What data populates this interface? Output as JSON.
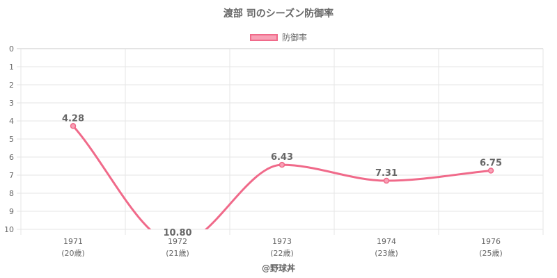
{
  "chart_data": {
    "type": "line",
    "title": "渡部 司のシーズン防御率",
    "legend_position": "top-center",
    "grid": true,
    "y_reversed": true,
    "ylim": [
      0,
      10
    ],
    "yticks": [
      "0",
      "1",
      "2",
      "3",
      "4",
      "5",
      "6",
      "7",
      "8",
      "9",
      "10"
    ],
    "categories": [
      {
        "year": "1971",
        "age": "(20歳)"
      },
      {
        "year": "1972",
        "age": "(21歳)"
      },
      {
        "year": "1973",
        "age": "(22歳)"
      },
      {
        "year": "1974",
        "age": "(23歳)"
      },
      {
        "year": "1976",
        "age": "(25歳)"
      }
    ],
    "series": [
      {
        "name": "防御率",
        "color": "#f06a8a",
        "fill": "#f8a1b6",
        "values": [
          4.28,
          10.8,
          6.43,
          7.31,
          6.75
        ],
        "labels": [
          "4.28",
          "10.80",
          "6.43",
          "7.31",
          "6.75"
        ]
      }
    ]
  },
  "footer": {
    "credit": "@野球丼"
  }
}
